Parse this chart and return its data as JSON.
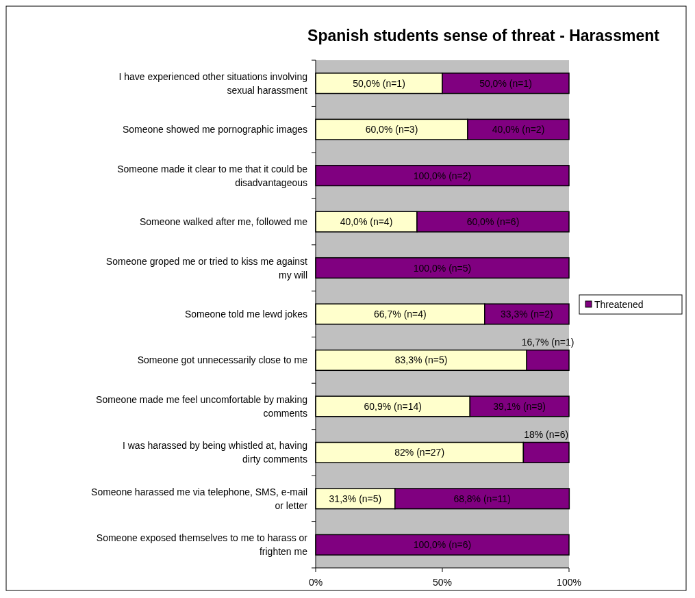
{
  "chart_data": {
    "type": "bar",
    "orientation": "horizontal",
    "stacked": true,
    "title": "Spanish students sense of threat - Harassment",
    "categories": [
      "I have experienced other situations involving sexual harassment",
      "Someone showed me pornographic images",
      "Someone made it clear to me that it could be disadvantageous",
      "Someone walked after me, followed me",
      "Someone groped me or tried to kiss me against my will",
      "Someone told me lewd jokes",
      "Someone got unnecessarily close to me",
      "Someone made me feel uncomfortable by making comments",
      "I was harassed by being whistled at, having dirty comments",
      "Someone harassed me via telephone, SMS, e-mail or letter",
      "Someone exposed themselves to me to harass or frighten me"
    ],
    "series": [
      {
        "color": "#ffffcc",
        "values": [
          50,
          60,
          0,
          40,
          0,
          66.7,
          83.3,
          60.9,
          82,
          31.3,
          0
        ],
        "value_labels": [
          "50,0% (n=1)",
          "60,0% (n=3)",
          null,
          "40,0% (n=4)",
          null,
          "66,7% (n=4)",
          "83,3% (n=5)",
          "60,9% (n=14)",
          "82% (n=27)",
          "31,3% (n=5)",
          null
        ]
      },
      {
        "name": "Threatened",
        "color": "#800080",
        "values": [
          50,
          40,
          100,
          60,
          100,
          33.3,
          16.7,
          39.1,
          18,
          68.8,
          100
        ],
        "value_labels": [
          "50,0% (n=1)",
          "40,0% (n=2)",
          "100,0% (n=2)",
          "60,0% (n=6)",
          "100,0% (n=5)",
          "33,3% (n=2)",
          "16,7% (n=1)",
          "39,1% (n=9)",
          "18% (n=6)",
          "68,8% (n=11)",
          "100,0% (n=6)"
        ]
      }
    ],
    "xlim": [
      0,
      100
    ],
    "xticks": [
      {
        "value": 0,
        "label": "0%"
      },
      {
        "value": 50,
        "label": "50%"
      },
      {
        "value": 100,
        "label": "100%"
      }
    ],
    "grid": false,
    "legend": "right"
  }
}
